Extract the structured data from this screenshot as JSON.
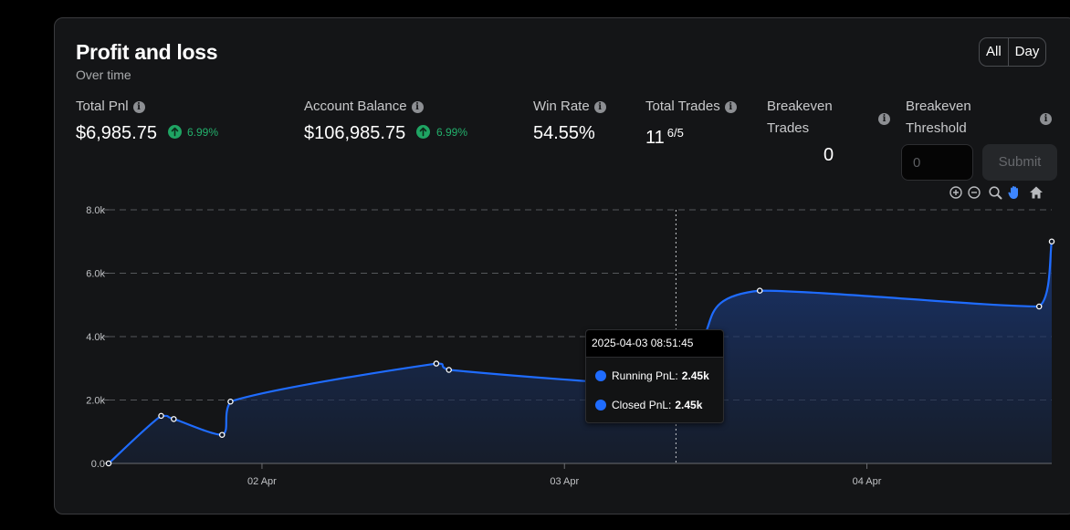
{
  "header": {
    "title": "Profit and loss",
    "subtitle": "Over time",
    "range_options": [
      "All",
      "Day"
    ]
  },
  "stats": {
    "total_pnl": {
      "label": "Total Pnl",
      "value": "$6,985.75",
      "change": "6.99%"
    },
    "account_balance": {
      "label": "Account Balance",
      "value": "$106,985.75",
      "change": "6.99%"
    },
    "win_rate": {
      "label": "Win Rate",
      "value": "54.55%"
    },
    "total_trades": {
      "label": "Total Trades",
      "value": "11",
      "sub": "6/5"
    },
    "breakeven_trades": {
      "label_line1": "Breakeven",
      "label_line2": "Trades",
      "value": "0"
    },
    "breakeven_threshold": {
      "label_line1": "Breakeven",
      "label_line2": "Threshold",
      "placeholder": "0",
      "submit_label": "Submit"
    }
  },
  "toolbar": [
    "zoom-in-icon",
    "zoom-out-icon",
    "zoom-select-icon",
    "pan-hand-icon",
    "home-reset-icon"
  ],
  "colors": {
    "accent": "#1f6cff",
    "positive": "#1fa463",
    "background": "#141517"
  },
  "tooltip": {
    "date": "2025-04-03 08:51:45",
    "rows": [
      {
        "label": "Running PnL:",
        "value": "2.45k"
      },
      {
        "label": "Closed PnL:",
        "value": "2.45k"
      }
    ]
  },
  "chart_data": {
    "type": "area",
    "title": "",
    "xlabel": "",
    "ylabel": "",
    "ylim": [
      0,
      8000
    ],
    "y_ticks": [
      "0.0",
      "2.0k",
      "4.0k",
      "6.0k",
      "8.0k"
    ],
    "x_ticks": [
      "02 Apr",
      "03 Apr",
      "04 Apr"
    ],
    "x_tick_dates": [
      "2025-04-02 00:00",
      "2025-04-03 00:00",
      "2025-04-04 00:00"
    ],
    "grid": true,
    "series": [
      {
        "points": [
          {
            "x": "2025-04-01 11:50",
            "y": 0
          },
          {
            "x": "2025-04-01 16:00",
            "y": 1500
          },
          {
            "x": "2025-04-01 17:00",
            "y": 1400
          },
          {
            "x": "2025-04-01 20:50",
            "y": 900
          },
          {
            "x": "2025-04-01 21:30",
            "y": 1950
          },
          {
            "x": "2025-04-02 13:50",
            "y": 3150
          },
          {
            "x": "2025-04-02 14:50",
            "y": 2950
          },
          {
            "x": "2025-04-03 08:51",
            "y": 2450
          },
          {
            "x": "2025-04-03 10:50",
            "y": 3900
          },
          {
            "x": "2025-04-03 15:30",
            "y": 5450
          },
          {
            "x": "2025-04-04 13:40",
            "y": 4950
          },
          {
            "x": "2025-04-04 14:40",
            "y": 7000
          }
        ]
      }
    ],
    "highlighted_point": {
      "x": "2025-04-03 08:51",
      "y": 2450
    }
  }
}
